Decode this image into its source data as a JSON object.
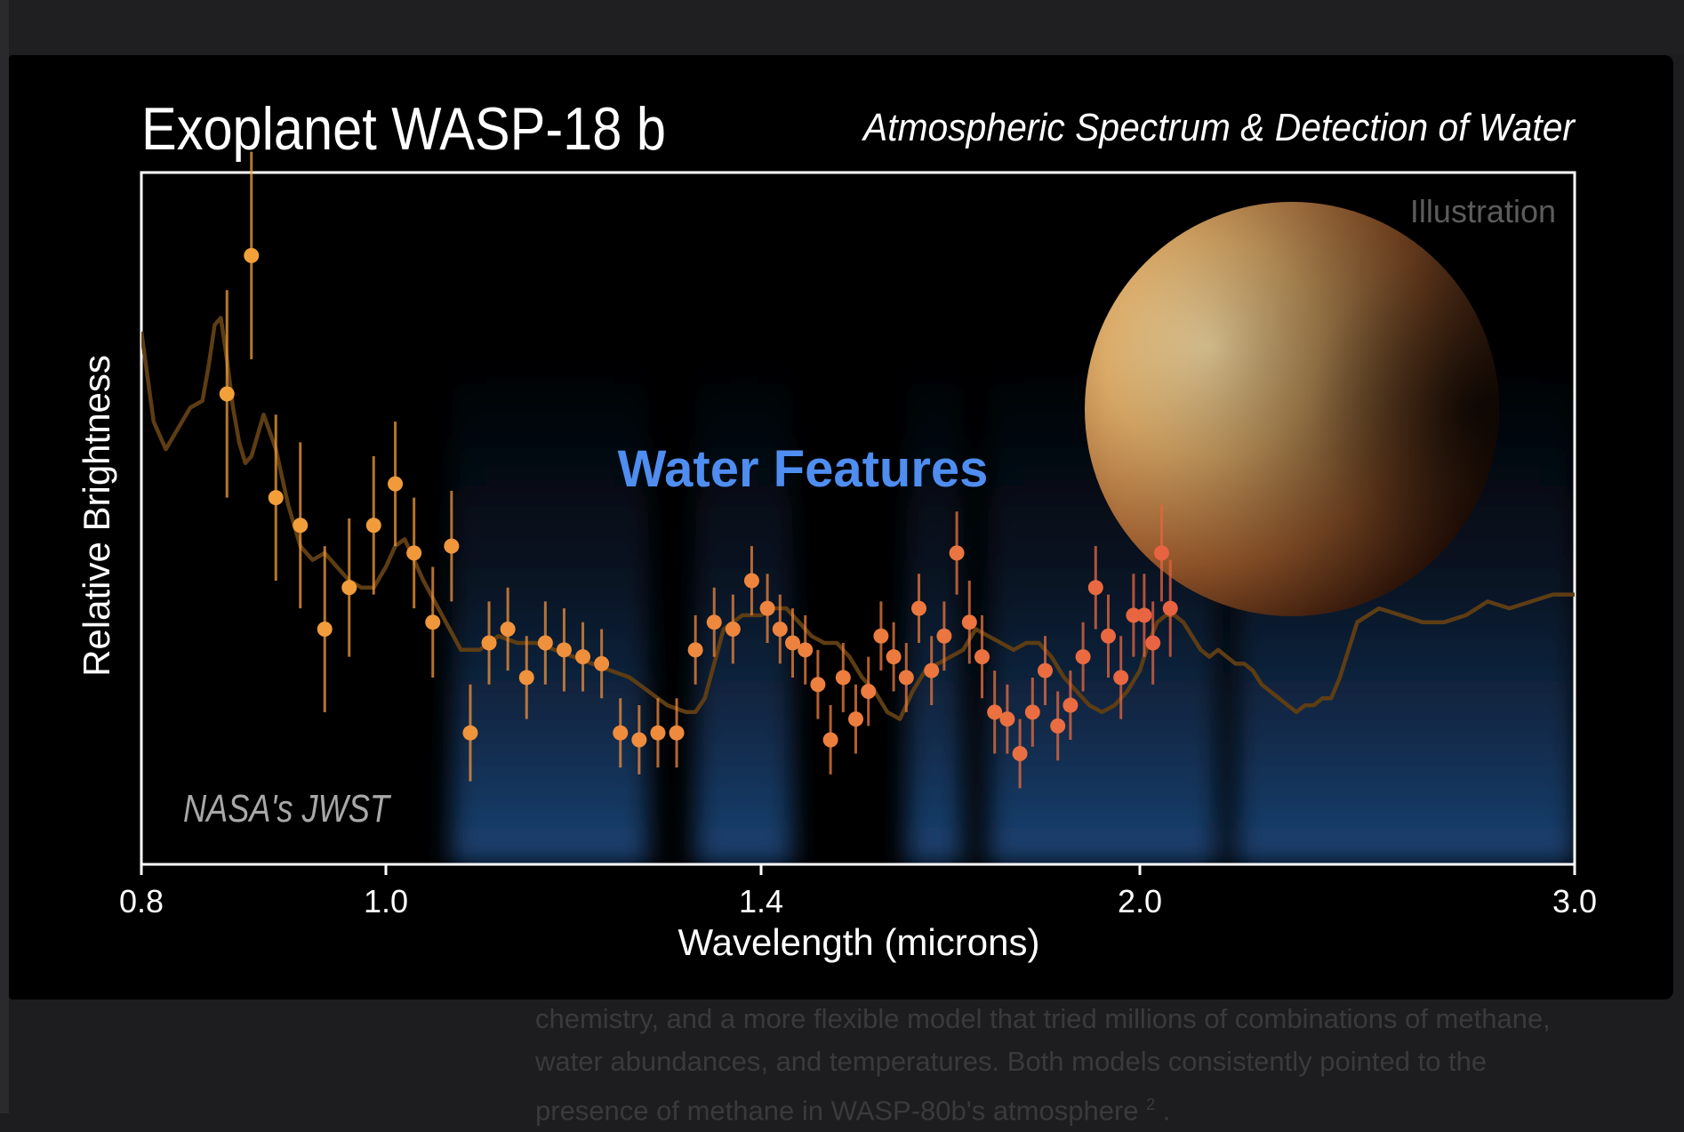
{
  "chart_data": {
    "type": "scatter",
    "title": "Exoplanet WASP-18 b",
    "subtitle": "Atmospheric Spectrum & Detection of Water",
    "xlabel": "Wavelength (microns)",
    "ylabel": "Relative Brightness",
    "xlim": [
      0.8,
      3.0
    ],
    "ylim": [
      0,
      1
    ],
    "x_ticks": [
      0.8,
      1.0,
      1.4,
      2.0,
      3.0
    ],
    "x_tick_labels": [
      "0.8",
      "1.0",
      "1.4",
      "2.0",
      "3.0"
    ],
    "annotations": {
      "water": "Water Features",
      "illustration": "Illustration",
      "credit": "NASA's JWST"
    },
    "water_bands": [
      [
        1.07,
        1.28
      ],
      [
        1.33,
        1.45
      ],
      [
        1.63,
        1.72
      ],
      [
        1.76,
        2.18
      ],
      [
        2.22,
        3.0
      ]
    ],
    "points": [
      {
        "x": 0.87,
        "y": 0.68,
        "err": 0.15
      },
      {
        "x": 0.89,
        "y": 0.88,
        "err": 0.15
      },
      {
        "x": 0.91,
        "y": 0.53,
        "err": 0.12
      },
      {
        "x": 0.93,
        "y": 0.49,
        "err": 0.12
      },
      {
        "x": 0.95,
        "y": 0.34,
        "err": 0.12
      },
      {
        "x": 0.97,
        "y": 0.4,
        "err": 0.1
      },
      {
        "x": 0.99,
        "y": 0.49,
        "err": 0.1
      },
      {
        "x": 1.01,
        "y": 0.55,
        "err": 0.09
      },
      {
        "x": 1.03,
        "y": 0.45,
        "err": 0.08
      },
      {
        "x": 1.05,
        "y": 0.35,
        "err": 0.08
      },
      {
        "x": 1.07,
        "y": 0.46,
        "err": 0.08
      },
      {
        "x": 1.09,
        "y": 0.19,
        "err": 0.07
      },
      {
        "x": 1.11,
        "y": 0.32,
        "err": 0.06
      },
      {
        "x": 1.13,
        "y": 0.34,
        "err": 0.06
      },
      {
        "x": 1.15,
        "y": 0.27,
        "err": 0.06
      },
      {
        "x": 1.17,
        "y": 0.32,
        "err": 0.06
      },
      {
        "x": 1.19,
        "y": 0.31,
        "err": 0.06
      },
      {
        "x": 1.21,
        "y": 0.3,
        "err": 0.05
      },
      {
        "x": 1.23,
        "y": 0.29,
        "err": 0.05
      },
      {
        "x": 1.25,
        "y": 0.19,
        "err": 0.05
      },
      {
        "x": 1.27,
        "y": 0.18,
        "err": 0.05
      },
      {
        "x": 1.29,
        "y": 0.19,
        "err": 0.05
      },
      {
        "x": 1.31,
        "y": 0.19,
        "err": 0.05
      },
      {
        "x": 1.33,
        "y": 0.31,
        "err": 0.05
      },
      {
        "x": 1.35,
        "y": 0.35,
        "err": 0.05
      },
      {
        "x": 1.37,
        "y": 0.34,
        "err": 0.05
      },
      {
        "x": 1.39,
        "y": 0.41,
        "err": 0.05
      },
      {
        "x": 1.41,
        "y": 0.37,
        "err": 0.05
      },
      {
        "x": 1.43,
        "y": 0.34,
        "err": 0.05
      },
      {
        "x": 1.45,
        "y": 0.32,
        "err": 0.05
      },
      {
        "x": 1.47,
        "y": 0.31,
        "err": 0.05
      },
      {
        "x": 1.49,
        "y": 0.26,
        "err": 0.05
      },
      {
        "x": 1.51,
        "y": 0.18,
        "err": 0.05
      },
      {
        "x": 1.53,
        "y": 0.27,
        "err": 0.05
      },
      {
        "x": 1.55,
        "y": 0.21,
        "err": 0.05
      },
      {
        "x": 1.57,
        "y": 0.25,
        "err": 0.05
      },
      {
        "x": 1.59,
        "y": 0.33,
        "err": 0.05
      },
      {
        "x": 1.61,
        "y": 0.3,
        "err": 0.05
      },
      {
        "x": 1.63,
        "y": 0.27,
        "err": 0.05
      },
      {
        "x": 1.65,
        "y": 0.37,
        "err": 0.05
      },
      {
        "x": 1.67,
        "y": 0.28,
        "err": 0.05
      },
      {
        "x": 1.69,
        "y": 0.33,
        "err": 0.05
      },
      {
        "x": 1.71,
        "y": 0.45,
        "err": 0.06
      },
      {
        "x": 1.73,
        "y": 0.35,
        "err": 0.06
      },
      {
        "x": 1.75,
        "y": 0.3,
        "err": 0.06
      },
      {
        "x": 1.77,
        "y": 0.22,
        "err": 0.06
      },
      {
        "x": 1.79,
        "y": 0.21,
        "err": 0.05
      },
      {
        "x": 1.81,
        "y": 0.16,
        "err": 0.05
      },
      {
        "x": 1.83,
        "y": 0.22,
        "err": 0.05
      },
      {
        "x": 1.85,
        "y": 0.28,
        "err": 0.05
      },
      {
        "x": 1.87,
        "y": 0.2,
        "err": 0.05
      },
      {
        "x": 1.89,
        "y": 0.23,
        "err": 0.05
      },
      {
        "x": 1.91,
        "y": 0.3,
        "err": 0.05
      },
      {
        "x": 1.93,
        "y": 0.4,
        "err": 0.06
      },
      {
        "x": 1.95,
        "y": 0.33,
        "err": 0.06
      },
      {
        "x": 1.97,
        "y": 0.27,
        "err": 0.06
      },
      {
        "x": 1.99,
        "y": 0.36,
        "err": 0.06
      },
      {
        "x": 2.01,
        "y": 0.36,
        "err": 0.06
      },
      {
        "x": 2.03,
        "y": 0.32,
        "err": 0.06
      },
      {
        "x": 2.05,
        "y": 0.45,
        "err": 0.07
      },
      {
        "x": 2.07,
        "y": 0.37,
        "err": 0.07
      }
    ],
    "model_curve": {
      "x": [
        0.8,
        0.81,
        0.82,
        0.83,
        0.84,
        0.85,
        0.855,
        0.86,
        0.865,
        0.87,
        0.875,
        0.88,
        0.885,
        0.89,
        0.9,
        0.91,
        0.92,
        0.93,
        0.94,
        0.95,
        0.96,
        0.97,
        0.98,
        0.99,
        1.0,
        1.01,
        1.02,
        1.03,
        1.04,
        1.06,
        1.08,
        1.1,
        1.12,
        1.14,
        1.16,
        1.18,
        1.2,
        1.22,
        1.24,
        1.26,
        1.28,
        1.3,
        1.32,
        1.33,
        1.34,
        1.36,
        1.38,
        1.4,
        1.42,
        1.44,
        1.46,
        1.48,
        1.5,
        1.52,
        1.54,
        1.56,
        1.58,
        1.6,
        1.62,
        1.64,
        1.66,
        1.68,
        1.7,
        1.72,
        1.74,
        1.76,
        1.78,
        1.8,
        1.82,
        1.84,
        1.86,
        1.88,
        1.9,
        1.92,
        1.94,
        1.96,
        1.98,
        2.0,
        2.02,
        2.04,
        2.06,
        2.08,
        2.1,
        2.12,
        2.14,
        2.16,
        2.18,
        2.2,
        2.22,
        2.24,
        2.26,
        2.28,
        2.3,
        2.32,
        2.34,
        2.36,
        2.38,
        2.4,
        2.42,
        2.44,
        2.46,
        2.48,
        2.5,
        2.55,
        2.6,
        2.65,
        2.7,
        2.75,
        2.8,
        2.85,
        2.9,
        2.95,
        3.0
      ],
      "y": [
        0.77,
        0.64,
        0.6,
        0.63,
        0.66,
        0.67,
        0.72,
        0.78,
        0.79,
        0.73,
        0.66,
        0.61,
        0.58,
        0.59,
        0.65,
        0.6,
        0.52,
        0.46,
        0.44,
        0.45,
        0.43,
        0.41,
        0.4,
        0.4,
        0.43,
        0.46,
        0.47,
        0.44,
        0.41,
        0.36,
        0.31,
        0.31,
        0.33,
        0.32,
        0.32,
        0.31,
        0.3,
        0.29,
        0.28,
        0.27,
        0.25,
        0.23,
        0.22,
        0.22,
        0.24,
        0.34,
        0.36,
        0.36,
        0.37,
        0.37,
        0.35,
        0.33,
        0.32,
        0.32,
        0.3,
        0.27,
        0.25,
        0.22,
        0.21,
        0.25,
        0.28,
        0.29,
        0.3,
        0.31,
        0.34,
        0.33,
        0.32,
        0.31,
        0.32,
        0.32,
        0.3,
        0.27,
        0.25,
        0.23,
        0.22,
        0.23,
        0.25,
        0.28,
        0.32,
        0.35,
        0.36,
        0.36,
        0.35,
        0.33,
        0.31,
        0.3,
        0.31,
        0.3,
        0.29,
        0.29,
        0.28,
        0.26,
        0.25,
        0.24,
        0.23,
        0.22,
        0.23,
        0.23,
        0.24,
        0.24,
        0.27,
        0.31,
        0.35,
        0.37,
        0.36,
        0.35,
        0.35,
        0.36,
        0.38,
        0.37,
        0.38,
        0.39,
        0.39
      ]
    }
  },
  "behind_text": {
    "line1": "chemistry, and a more flexible model that tried millions of combinations of methane,",
    "line2": "water abundances, and temperatures. Both models consistently pointed to the",
    "line3": "presence of methane in WASP-80b's atmosphere",
    "line3_ref": "2"
  }
}
